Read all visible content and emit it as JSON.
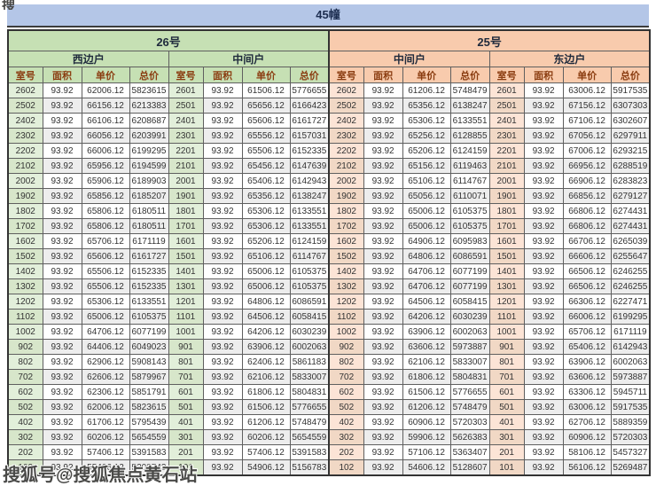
{
  "title": "45幢",
  "watermark": {
    "text": "搜狐号@搜狐焦点黄石站",
    "corner": "搜"
  },
  "colors": {
    "title_bar": "#b4c6e7",
    "green_header": "#c6e0b4",
    "green_room_cell": "#e2efda",
    "orange_header": "#f8cbad",
    "orange_room_cell": "#fce4d6",
    "column_header_text": "#8a3c10",
    "band_gray": "#ededed"
  },
  "table": {
    "column_headers": [
      "室号",
      "面积",
      "单价",
      "总价"
    ],
    "buildings": [
      {
        "label": "26号",
        "units": [
          {
            "label": "西边户",
            "rows": [
              [
                "2602",
                "93.92",
                "62006.12",
                "5823615"
              ],
              [
                "2502",
                "93.92",
                "66156.12",
                "6213383"
              ],
              [
                "2402",
                "93.92",
                "66106.12",
                "6208687"
              ],
              [
                "2302",
                "93.92",
                "66056.12",
                "6203991"
              ],
              [
                "2202",
                "93.92",
                "66006.12",
                "6199295"
              ],
              [
                "2102",
                "93.92",
                "65956.12",
                "6194599"
              ],
              [
                "2002",
                "93.92",
                "65906.12",
                "6189903"
              ],
              [
                "1902",
                "93.92",
                "65856.12",
                "6185207"
              ],
              [
                "1802",
                "93.92",
                "65806.12",
                "6180511"
              ],
              [
                "1702",
                "93.92",
                "65806.12",
                "6180511"
              ],
              [
                "1602",
                "93.92",
                "65706.12",
                "6171119"
              ],
              [
                "1502",
                "93.92",
                "65606.12",
                "6161727"
              ],
              [
                "1402",
                "93.92",
                "65506.12",
                "6152335"
              ],
              [
                "1302",
                "93.92",
                "65506.12",
                "6152335"
              ],
              [
                "1202",
                "93.92",
                "65306.12",
                "6133551"
              ],
              [
                "1102",
                "93.92",
                "65006.12",
                "6105375"
              ],
              [
                "1002",
                "93.92",
                "64706.12",
                "6077199"
              ],
              [
                "902",
                "93.92",
                "64406.12",
                "6049023"
              ],
              [
                "802",
                "93.92",
                "62906.12",
                "5908143"
              ],
              [
                "702",
                "93.92",
                "62606.12",
                "5879967"
              ],
              [
                "602",
                "93.92",
                "62306.12",
                "5851791"
              ],
              [
                "502",
                "93.92",
                "62006.12",
                "5823615"
              ],
              [
                "402",
                "93.92",
                "61706.12",
                "5795439"
              ],
              [
                "302",
                "93.92",
                "60206.12",
                "5654559"
              ],
              [
                "202",
                "93.92",
                "57406.12",
                "5391583"
              ],
              [
                "102",
                "93.92",
                "55406.12",
                "5203743"
              ]
            ]
          },
          {
            "label": "中间户",
            "rows": [
              [
                "2601",
                "93.92",
                "61506.12",
                "5776655"
              ],
              [
                "2501",
                "93.92",
                "65656.12",
                "6166423"
              ],
              [
                "2401",
                "93.92",
                "65606.12",
                "6161727"
              ],
              [
                "2301",
                "93.92",
                "65556.12",
                "6157031"
              ],
              [
                "2201",
                "93.92",
                "65506.12",
                "6152335"
              ],
              [
                "2101",
                "93.92",
                "65456.12",
                "6147639"
              ],
              [
                "2001",
                "93.92",
                "65406.12",
                "6142943"
              ],
              [
                "1901",
                "93.92",
                "65356.12",
                "6138247"
              ],
              [
                "1801",
                "93.92",
                "65306.12",
                "6133551"
              ],
              [
                "1701",
                "93.92",
                "65306.12",
                "6133551"
              ],
              [
                "1601",
                "93.92",
                "65206.12",
                "6124159"
              ],
              [
                "1501",
                "93.92",
                "65106.12",
                "6114767"
              ],
              [
                "1401",
                "93.92",
                "65006.12",
                "6105375"
              ],
              [
                "1301",
                "93.92",
                "65006.12",
                "6105375"
              ],
              [
                "1201",
                "93.92",
                "64806.12",
                "6086591"
              ],
              [
                "1101",
                "93.92",
                "64506.12",
                "6058415"
              ],
              [
                "1001",
                "93.92",
                "64206.12",
                "6030239"
              ],
              [
                "901",
                "93.92",
                "63906.12",
                "6002063"
              ],
              [
                "801",
                "93.92",
                "62406.12",
                "5861183"
              ],
              [
                "701",
                "93.92",
                "62106.12",
                "5833007"
              ],
              [
                "601",
                "93.92",
                "61806.12",
                "5804831"
              ],
              [
                "501",
                "93.92",
                "61506.12",
                "5776655"
              ],
              [
                "401",
                "93.92",
                "61206.12",
                "5748479"
              ],
              [
                "301",
                "93.92",
                "60206.12",
                "5654559"
              ],
              [
                "201",
                "93.92",
                "57406.12",
                "5391583"
              ],
              [
                "101",
                "93.92",
                "54906.12",
                "5156783"
              ]
            ]
          }
        ]
      },
      {
        "label": "25号",
        "units": [
          {
            "label": "中间户",
            "rows": [
              [
                "2602",
                "93.92",
                "61206.12",
                "5748479"
              ],
              [
                "2502",
                "93.92",
                "65356.12",
                "6138247"
              ],
              [
                "2402",
                "93.92",
                "65306.12",
                "6133551"
              ],
              [
                "2302",
                "93.92",
                "65256.12",
                "6128855"
              ],
              [
                "2202",
                "93.92",
                "65206.12",
                "6124159"
              ],
              [
                "2102",
                "93.92",
                "65156.12",
                "6119463"
              ],
              [
                "2002",
                "93.92",
                "65106.12",
                "6114767"
              ],
              [
                "1902",
                "93.92",
                "65056.12",
                "6110071"
              ],
              [
                "1802",
                "93.92",
                "65006.12",
                "6105375"
              ],
              [
                "1702",
                "93.92",
                "65006.12",
                "6105375"
              ],
              [
                "1602",
                "93.92",
                "64906.12",
                "6095983"
              ],
              [
                "1502",
                "93.92",
                "64806.12",
                "6086591"
              ],
              [
                "1402",
                "93.92",
                "64706.12",
                "6077199"
              ],
              [
                "1302",
                "93.92",
                "64706.12",
                "6077199"
              ],
              [
                "1202",
                "93.92",
                "64506.12",
                "6058415"
              ],
              [
                "1102",
                "93.92",
                "64206.12",
                "6030239"
              ],
              [
                "1002",
                "93.92",
                "63906.12",
                "6002063"
              ],
              [
                "902",
                "93.92",
                "63606.12",
                "5973887"
              ],
              [
                "802",
                "93.92",
                "62106.12",
                "5833007"
              ],
              [
                "702",
                "93.92",
                "61806.12",
                "5804831"
              ],
              [
                "602",
                "93.92",
                "61506.12",
                "5776655"
              ],
              [
                "502",
                "93.92",
                "61206.12",
                "5748479"
              ],
              [
                "402",
                "93.92",
                "60906.12",
                "5720303"
              ],
              [
                "302",
                "93.92",
                "59906.12",
                "5626383"
              ],
              [
                "202",
                "93.92",
                "57106.12",
                "5363407"
              ],
              [
                "102",
                "93.92",
                "54606.12",
                "5128607"
              ]
            ]
          },
          {
            "label": "东边户",
            "rows": [
              [
                "2601",
                "93.92",
                "63006.12",
                "5917535"
              ],
              [
                "2501",
                "93.92",
                "67156.12",
                "6307303"
              ],
              [
                "2401",
                "93.92",
                "67106.12",
                "6302607"
              ],
              [
                "2301",
                "93.92",
                "67056.12",
                "6297911"
              ],
              [
                "2201",
                "93.92",
                "67006.12",
                "6293215"
              ],
              [
                "2101",
                "93.92",
                "66956.12",
                "6288519"
              ],
              [
                "2001",
                "93.92",
                "66906.12",
                "6283823"
              ],
              [
                "1901",
                "93.92",
                "66856.12",
                "6279127"
              ],
              [
                "1801",
                "93.92",
                "66806.12",
                "6274431"
              ],
              [
                "1701",
                "93.92",
                "66806.12",
                "6274431"
              ],
              [
                "1601",
                "93.92",
                "66706.12",
                "6265039"
              ],
              [
                "1501",
                "93.92",
                "66606.12",
                "6255647"
              ],
              [
                "1401",
                "93.92",
                "66506.12",
                "6246255"
              ],
              [
                "1301",
                "93.92",
                "66506.12",
                "6246255"
              ],
              [
                "1201",
                "93.92",
                "66306.12",
                "6227471"
              ],
              [
                "1101",
                "93.92",
                "66006.12",
                "6199295"
              ],
              [
                "1001",
                "93.92",
                "65706.12",
                "6171119"
              ],
              [
                "901",
                "93.92",
                "65406.12",
                "6142943"
              ],
              [
                "801",
                "93.92",
                "63906.12",
                "6002063"
              ],
              [
                "701",
                "93.92",
                "63606.12",
                "5973887"
              ],
              [
                "601",
                "93.92",
                "63306.12",
                "5945711"
              ],
              [
                "501",
                "93.92",
                "63006.12",
                "5917535"
              ],
              [
                "401",
                "93.92",
                "62706.12",
                "5889359"
              ],
              [
                "301",
                "93.92",
                "60906.12",
                "5720303"
              ],
              [
                "201",
                "93.92",
                "58106.12",
                "5457327"
              ],
              [
                "101",
                "93.92",
                "56106.12",
                "5269487"
              ]
            ]
          }
        ]
      }
    ]
  }
}
